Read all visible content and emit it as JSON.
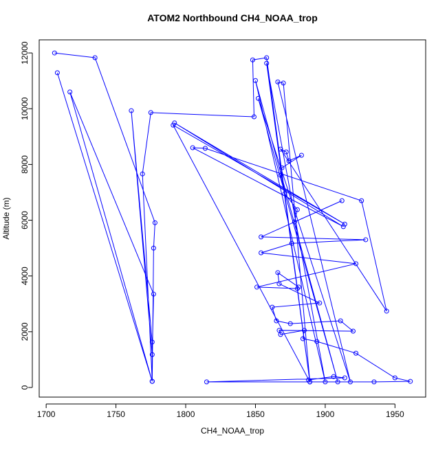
{
  "chart_data": {
    "type": "line",
    "title": "ATOM2 Northbound CH4_NOAA_trop",
    "x_label": "CH4_NOAA_trop",
    "y_label": "Altitude (m)",
    "color": "#0000ff",
    "markers": true,
    "xlim": [
      1695,
      1972
    ],
    "ylim": [
      -345,
      12470
    ],
    "xticks": [
      1700,
      1750,
      1800,
      1850,
      1900,
      1950
    ],
    "yticks": [
      0,
      2000,
      4000,
      6000,
      8000,
      10000,
      12000
    ],
    "series": [
      {
        "name": "CH4_NOAA_trop",
        "x": [
          1706,
          1735,
          1778,
          1777,
          1776,
          1708,
          1776,
          1717,
          1777,
          1776,
          1761,
          1776,
          1776,
          1769,
          1775,
          1849,
          1848,
          1858,
          1889,
          1858,
          1900,
          1850,
          1909,
          1852,
          1918,
          1866,
          1870,
          1889,
          1791,
          1914,
          1792,
          1913,
          1805,
          1814,
          1926,
          1944,
          1868,
          1872,
          1874,
          1883,
          1869,
          1868,
          1871,
          1880,
          1878,
          1912,
          1854,
          1929,
          1876,
          1854,
          1922,
          1851,
          1880,
          1881,
          1866,
          1867,
          1896,
          1862,
          1865,
          1875,
          1911,
          1920,
          1867,
          1868,
          1885,
          1884,
          1894,
          1922,
          1950,
          1961,
          1935,
          1815,
          1914,
          1906,
          1888
        ],
        "y": [
          12000,
          11830,
          5910,
          5000,
          220,
          11290,
          220,
          10600,
          3350,
          1180,
          9930,
          1630,
          220,
          7660,
          9860,
          9710,
          11750,
          11830,
          200,
          11630,
          200,
          11010,
          200,
          10370,
          200,
          10960,
          10920,
          200,
          9410,
          5860,
          9490,
          5770,
          8600,
          8580,
          6700,
          2740,
          8550,
          8450,
          8130,
          8330,
          7880,
          7610,
          6950,
          6380,
          5940,
          6700,
          5400,
          5300,
          5170,
          4830,
          4440,
          3600,
          3550,
          3600,
          4120,
          3720,
          3030,
          2880,
          2390,
          2290,
          2390,
          2020,
          2050,
          1900,
          2050,
          1750,
          1650,
          1230,
          345,
          220,
          200,
          200,
          345,
          390,
          270
        ]
      }
    ]
  }
}
